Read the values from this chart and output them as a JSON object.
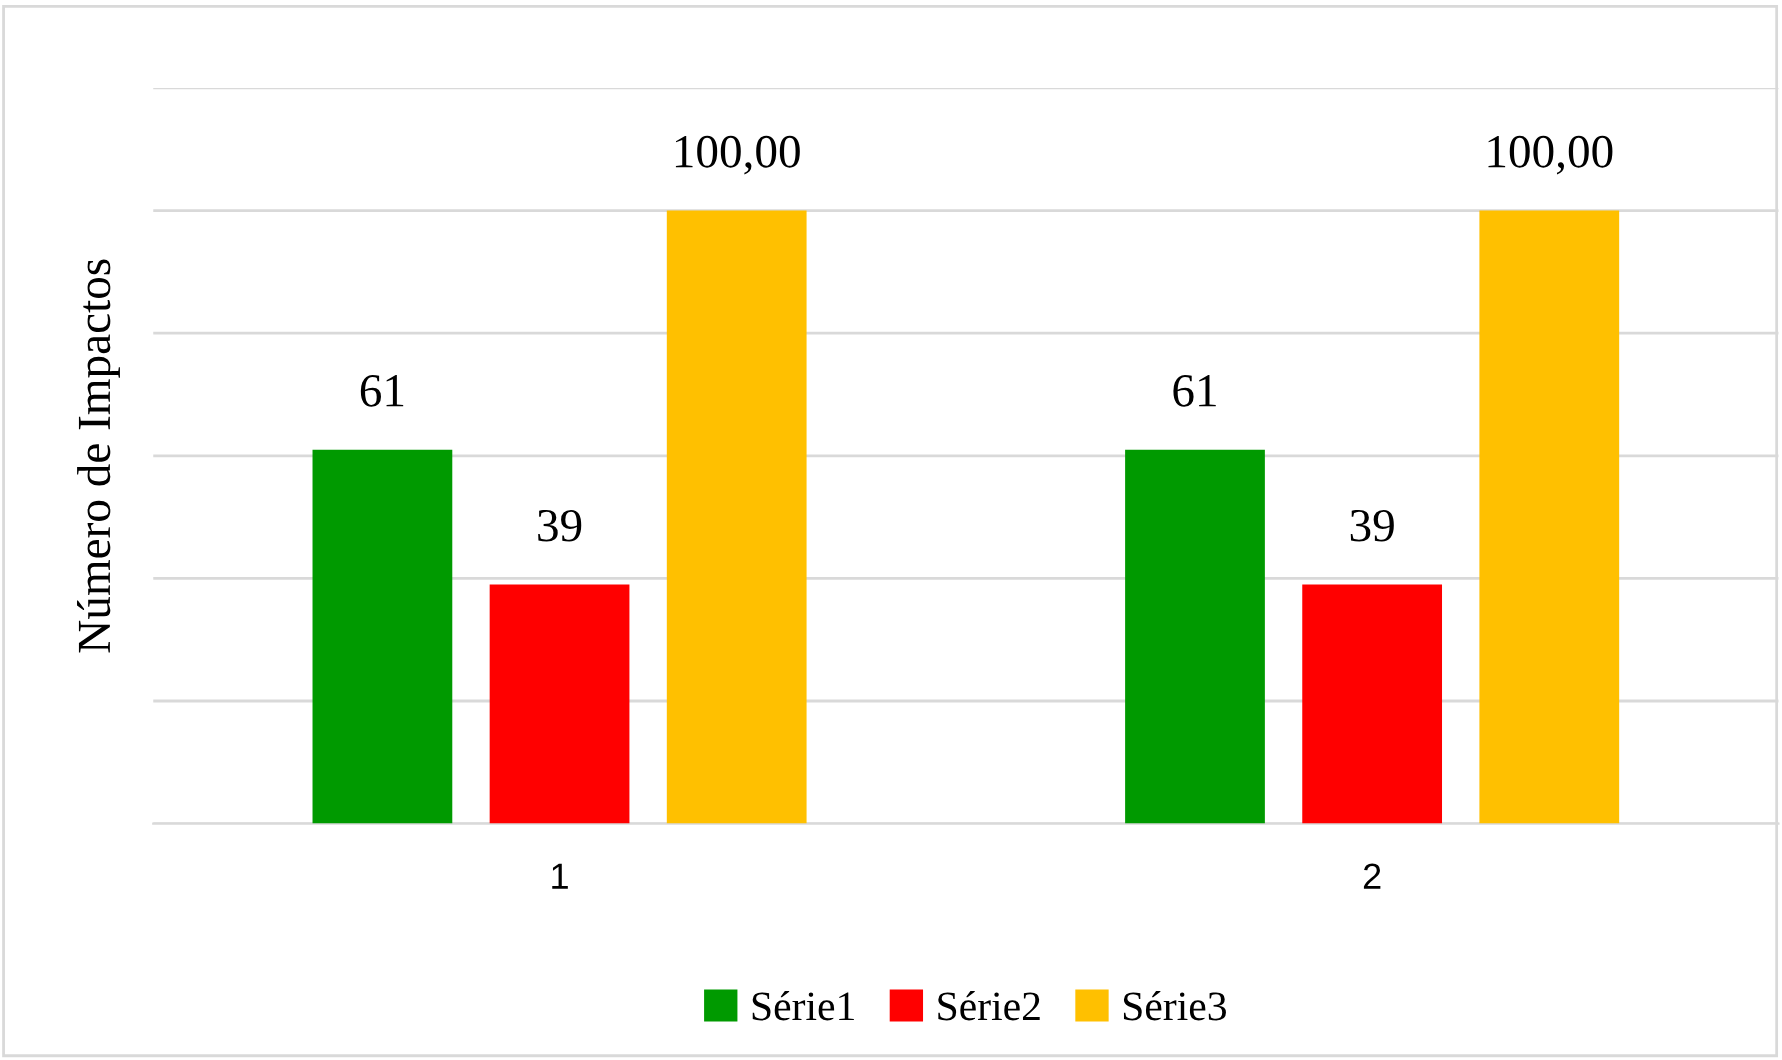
{
  "chart_data": {
    "type": "bar",
    "ylabel": "Número de Impactos",
    "categories": [
      "1",
      "2"
    ],
    "series": [
      {
        "name": "Série1",
        "color": "#009a00",
        "values": [
          61,
          61
        ],
        "value_labels": [
          "61",
          "61"
        ]
      },
      {
        "name": "Série2",
        "color": "#ff0000",
        "values": [
          39,
          39
        ],
        "value_labels": [
          "39",
          "39"
        ]
      },
      {
        "name": "Série3",
        "color": "#ffc000",
        "values": [
          100,
          100
        ],
        "value_labels": [
          "100,00",
          "100,00"
        ]
      }
    ],
    "ylim": [
      0,
      120
    ],
    "yticks": [
      {
        "value": 0,
        "label": null
      },
      {
        "value": 20,
        "label": null
      },
      {
        "value": 40,
        "label": null
      },
      {
        "value": 60,
        "label": null
      },
      {
        "value": 80,
        "label": null
      },
      {
        "value": 100,
        "label": null
      },
      {
        "value": 120,
        "label": null
      }
    ],
    "tick_labels": "x",
    "grid": "y",
    "legend": "bottom"
  }
}
